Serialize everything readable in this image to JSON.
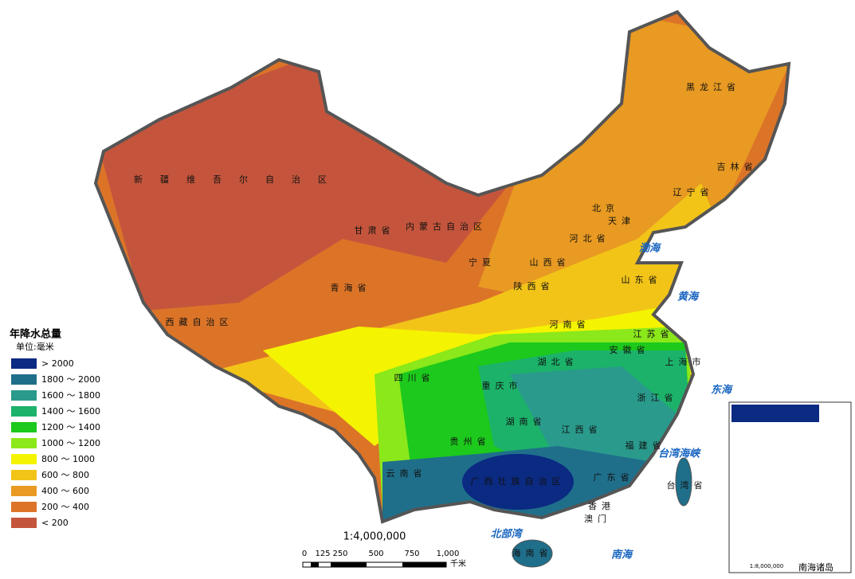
{
  "legend": {
    "title": "年降水总量",
    "unit": "单位:毫米",
    "items": [
      {
        "label": "> 2000",
        "color": "#0b2a82"
      },
      {
        "label": "1800 ～ 2000",
        "color": "#1f6f8b"
      },
      {
        "label": "1600 ～ 1800",
        "color": "#2a9a8c"
      },
      {
        "label": "1400 ～ 1600",
        "color": "#1cb26a"
      },
      {
        "label": "1200 ～ 1400",
        "color": "#1cc91c"
      },
      {
        "label": "1000 ～ 1200",
        "color": "#8be81a"
      },
      {
        "label": "800 ～ 1000",
        "color": "#f4f400"
      },
      {
        "label": "600 ～ 800",
        "color": "#f2c418"
      },
      {
        "label": "400 ～ 600",
        "color": "#e89a22"
      },
      {
        "label": "200 ～ 400",
        "color": "#dc7428"
      },
      {
        "label": "< 200",
        "color": "#c4553c"
      }
    ]
  },
  "scale": {
    "ratio": "1:4,000,000",
    "ticks": [
      "0",
      "125",
      "250",
      "500",
      "750",
      "1,000"
    ],
    "unit": "千米"
  },
  "inset": {
    "title": "南海诸岛",
    "ratio": "1:8,000,000"
  },
  "regions": [
    "新疆维吾尔自治区",
    "西藏自治区",
    "青海省",
    "甘肃省",
    "内蒙古自治区",
    "黑龙江省",
    "吉林省",
    "辽宁省",
    "河北省",
    "北京",
    "天津",
    "山西省",
    "陕西省",
    "宁夏",
    "山东省",
    "河南省",
    "江苏省",
    "安徽省",
    "湖北省",
    "四川省",
    "重庆市",
    "湖南省",
    "江西省",
    "浙江省",
    "福建省",
    "贵州省",
    "云南省",
    "广西壮族自治区",
    "广东省",
    "台湾省",
    "海南省",
    "上海市",
    "香港",
    "澳门"
  ],
  "seas": [
    "渤海",
    "黄海",
    "东海",
    "台湾海峡",
    "南海",
    "北部湾"
  ]
}
